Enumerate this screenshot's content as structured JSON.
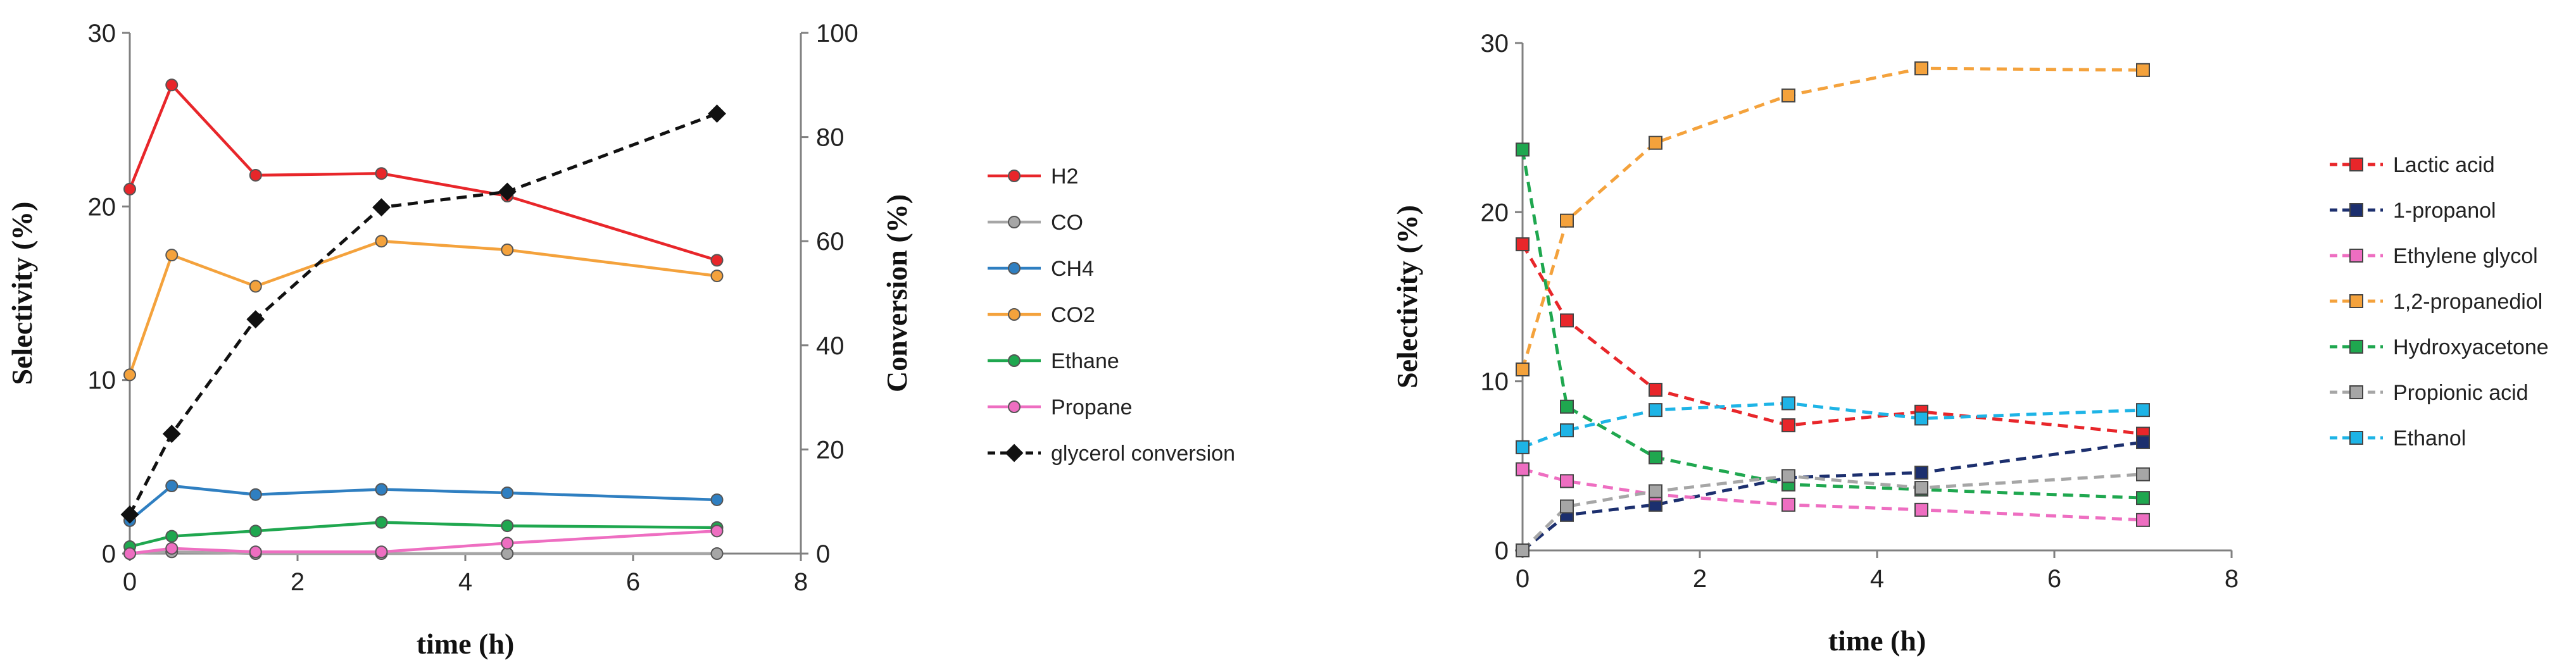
{
  "chart_data": [
    {
      "type": "line",
      "title": "",
      "xlabel": "time (h)",
      "ylabel": "Selectivity (%)",
      "y2label": "Conversion (%)",
      "xlim": [
        0,
        8
      ],
      "ylim": [
        0,
        30
      ],
      "y2lim": [
        0,
        100
      ],
      "xticks": [
        "0",
        "2",
        "4",
        "6",
        "8"
      ],
      "yticks": [
        "0",
        "10",
        "20",
        "30"
      ],
      "y2ticks": [
        "0",
        "20",
        "40",
        "60",
        "80",
        "100"
      ],
      "grid": false,
      "legend_position": "right",
      "series": [
        {
          "name": "H2",
          "color": "#e8262a",
          "dash": false,
          "marker": "circle",
          "axis": "left",
          "x": [
            0,
            0.5,
            1.5,
            3,
            4.5,
            7
          ],
          "values": [
            21.0,
            27.0,
            21.8,
            21.9,
            20.6,
            16.9
          ]
        },
        {
          "name": "CO",
          "color": "#a6a6a6",
          "dash": false,
          "marker": "circle",
          "axis": "left",
          "x": [
            0,
            0.5,
            1.5,
            3,
            4.5,
            7
          ],
          "values": [
            0.0,
            0.1,
            0.0,
            0.0,
            0.0,
            0.0
          ]
        },
        {
          "name": "CH4",
          "color": "#2f7fc1",
          "dash": false,
          "marker": "circle",
          "axis": "left",
          "x": [
            0,
            0.5,
            1.5,
            3,
            4.5,
            7
          ],
          "values": [
            1.9,
            3.9,
            3.4,
            3.7,
            3.5,
            3.1
          ]
        },
        {
          "name": "CO2",
          "color": "#f4a23c",
          "dash": false,
          "marker": "circle",
          "axis": "left",
          "x": [
            0,
            0.5,
            1.5,
            3,
            4.5,
            7
          ],
          "values": [
            10.3,
            17.2,
            15.4,
            18.0,
            17.5,
            16.0
          ]
        },
        {
          "name": "Ethane",
          "color": "#1fa74f",
          "dash": false,
          "marker": "circle",
          "axis": "left",
          "x": [
            0,
            0.5,
            1.5,
            3,
            4.5,
            7
          ],
          "values": [
            0.4,
            1.0,
            1.3,
            1.8,
            1.6,
            1.5
          ]
        },
        {
          "name": "Propane",
          "color": "#ee6ec1",
          "dash": false,
          "marker": "circle",
          "axis": "left",
          "x": [
            0,
            0.5,
            1.5,
            3,
            4.5,
            7
          ],
          "values": [
            0.0,
            0.3,
            0.1,
            0.1,
            0.6,
            1.3
          ]
        },
        {
          "name": "glycerol conversion",
          "color": "#111111",
          "dash": true,
          "marker": "diamond",
          "axis": "right",
          "x": [
            0,
            0.5,
            1.5,
            3,
            4.5,
            7
          ],
          "values": [
            7.5,
            23.0,
            45.0,
            66.5,
            69.5,
            84.5
          ]
        }
      ]
    },
    {
      "type": "line",
      "title": "",
      "xlabel": "time (h)",
      "ylabel": "Selectivity (%)",
      "xlim": [
        0,
        8
      ],
      "ylim": [
        0,
        30
      ],
      "xticks": [
        "0",
        "2",
        "4",
        "6",
        "8"
      ],
      "yticks": [
        "0",
        "10",
        "20",
        "30"
      ],
      "grid": false,
      "legend_position": "right",
      "series": [
        {
          "name": "Lactic acid",
          "color": "#e8262a",
          "dash": true,
          "marker": "square",
          "x": [
            0,
            0.5,
            1.5,
            3,
            4.5,
            7
          ],
          "values": [
            18.1,
            13.6,
            9.5,
            7.4,
            8.2,
            6.9
          ]
        },
        {
          "name": "1-propanol",
          "color": "#1c2f6e",
          "dash": true,
          "marker": "square",
          "x": [
            0,
            0.5,
            1.5,
            3,
            4.5,
            7
          ],
          "values": [
            0.0,
            2.1,
            2.7,
            4.3,
            4.6,
            6.4
          ]
        },
        {
          "name": "Ethylene glycol",
          "color": "#ee6ec1",
          "dash": true,
          "marker": "square",
          "x": [
            0,
            0.5,
            1.5,
            3,
            4.5,
            7
          ],
          "values": [
            4.8,
            4.1,
            3.3,
            2.7,
            2.4,
            1.8
          ]
        },
        {
          "name": "1,2-propanediol",
          "color": "#f4a23c",
          "dash": true,
          "marker": "square",
          "x": [
            0,
            0.5,
            1.5,
            3,
            4.5,
            7
          ],
          "values": [
            10.7,
            19.5,
            24.1,
            26.9,
            28.5,
            28.4
          ]
        },
        {
          "name": "Hydroxyacetone",
          "color": "#1fa74f",
          "dash": true,
          "marker": "square",
          "x": [
            0,
            0.5,
            1.5,
            3,
            4.5,
            7
          ],
          "values": [
            23.7,
            8.5,
            5.5,
            3.9,
            3.6,
            3.1
          ]
        },
        {
          "name": "Propionic acid",
          "color": "#a6a6a6",
          "dash": true,
          "marker": "square",
          "x": [
            0,
            0.5,
            1.5,
            3,
            4.5,
            7
          ],
          "values": [
            0.0,
            2.6,
            3.5,
            4.4,
            3.7,
            4.5
          ]
        },
        {
          "name": "Ethanol",
          "color": "#1eb4e6",
          "dash": true,
          "marker": "square",
          "x": [
            0,
            0.5,
            1.5,
            3,
            4.5,
            7
          ],
          "values": [
            6.1,
            7.1,
            8.3,
            8.7,
            7.8,
            8.3
          ]
        }
      ]
    }
  ]
}
